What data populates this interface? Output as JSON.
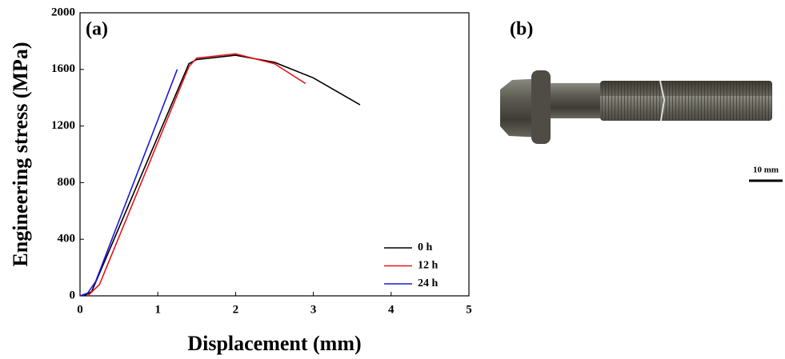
{
  "chart_data": {
    "type": "line",
    "x_label": "Displacement (mm)",
    "y_label": "Engineering stress (MPa)",
    "xlim": [
      0,
      5
    ],
    "xticks": [
      0,
      1,
      2,
      3,
      4,
      5
    ],
    "ylim": [
      0,
      2000
    ],
    "yticks": [
      0,
      400,
      800,
      1200,
      1600,
      2000
    ],
    "legend": "lower right",
    "series": [
      {
        "name": "0 h",
        "color": "#000000",
        "x": [
          0.05,
          0.15,
          1.4,
          1.5,
          2.0,
          2.5,
          3.0,
          3.6
        ],
        "values": [
          0,
          30,
          1640,
          1670,
          1700,
          1650,
          1540,
          1350
        ]
      },
      {
        "name": "12 h",
        "color": "#e8141b",
        "x": [
          0.1,
          0.25,
          1.4,
          1.5,
          2.0,
          2.5,
          2.9
        ],
        "values": [
          0,
          80,
          1620,
          1680,
          1710,
          1640,
          1500
        ]
      },
      {
        "name": "24 h",
        "color": "#1a1adb",
        "x": [
          0.0,
          0.1,
          0.2,
          1.25
        ],
        "values": [
          0,
          20,
          100,
          1600
        ]
      }
    ]
  },
  "panel_labels": [
    "(a)",
    "(b)"
  ],
  "scale_bar_label": "10 mm"
}
